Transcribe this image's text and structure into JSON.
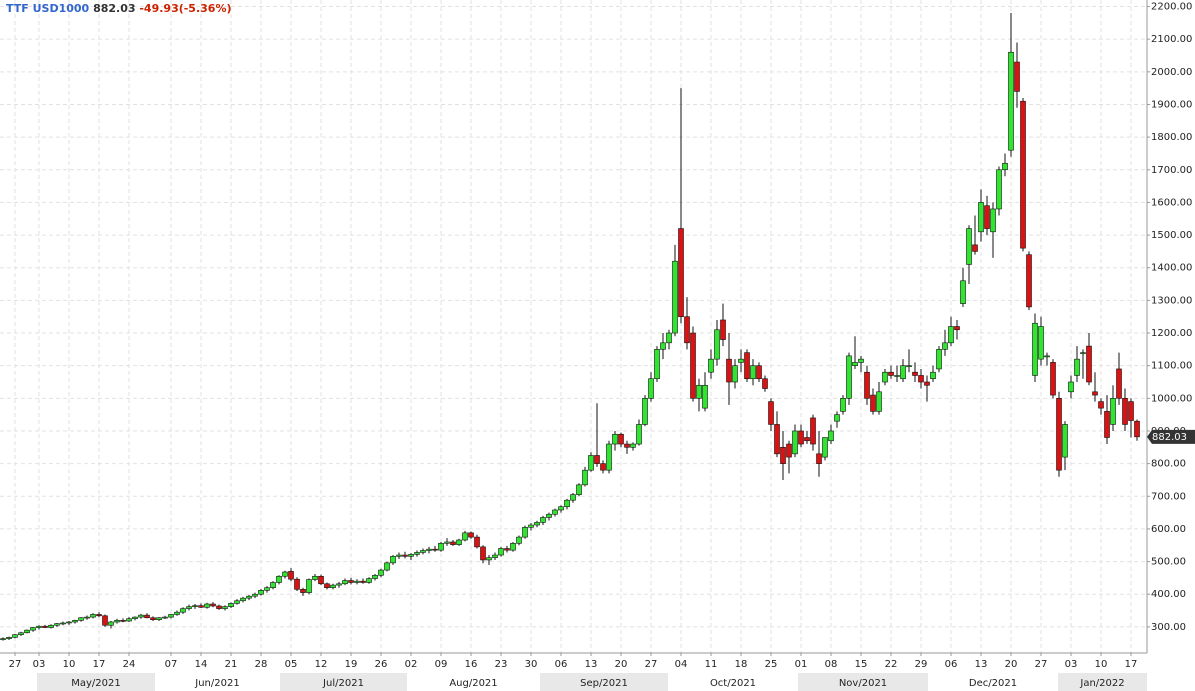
{
  "chart_data": {
    "type": "candlestick",
    "header": {
      "symbol": "TTF USD1000",
      "last": 882.03,
      "change": "-49.93(-5.36%)"
    },
    "months": [
      "May/2021",
      "Jun/2021",
      "Jul/2021",
      "Aug/2021",
      "Sep/2021",
      "Oct/2021",
      "Nov/2021",
      "Dec/2021",
      "Jan/2022"
    ],
    "categories": [
      null,
      null,
      "27",
      null,
      null,
      null,
      "03",
      null,
      null,
      null,
      null,
      "10",
      null,
      null,
      null,
      null,
      "17",
      null,
      null,
      null,
      null,
      "24",
      null,
      null,
      null,
      null,
      null,
      null,
      "07",
      null,
      null,
      null,
      null,
      "14",
      null,
      null,
      null,
      null,
      "21",
      null,
      null,
      null,
      null,
      "28",
      null,
      null,
      null,
      null,
      "05",
      null,
      null,
      null,
      null,
      "12",
      null,
      null,
      null,
      null,
      "19",
      null,
      null,
      null,
      null,
      "26",
      null,
      null,
      null,
      null,
      "02",
      null,
      null,
      null,
      null,
      "09",
      null,
      null,
      null,
      null,
      "16",
      null,
      null,
      null,
      null,
      "23",
      null,
      null,
      null,
      null,
      "30",
      null,
      null,
      null,
      null,
      "06",
      null,
      null,
      null,
      null,
      "13",
      null,
      null,
      null,
      null,
      "20",
      null,
      null,
      null,
      null,
      "27",
      null,
      null,
      null,
      null,
      "04",
      null,
      null,
      null,
      null,
      "11",
      null,
      null,
      null,
      null,
      "18",
      null,
      null,
      null,
      null,
      "25",
      null,
      null,
      null,
      null,
      "01",
      null,
      null,
      null,
      null,
      "08",
      null,
      null,
      null,
      null,
      "15",
      null,
      null,
      null,
      null,
      "22",
      null,
      null,
      null,
      null,
      "29",
      null,
      null,
      null,
      null,
      "06",
      null,
      null,
      null,
      null,
      "13",
      null,
      null,
      null,
      null,
      "20",
      null,
      null,
      null,
      null,
      "27",
      null,
      null,
      null,
      null,
      "03",
      null,
      null,
      null,
      null,
      "10",
      null,
      null,
      null,
      null,
      "17",
      null
    ],
    "ohlc": [
      [
        262,
        268,
        258,
        264
      ],
      [
        264,
        270,
        260,
        268
      ],
      [
        268,
        278,
        265,
        276
      ],
      [
        276,
        285,
        272,
        282
      ],
      [
        282,
        292,
        280,
        290
      ],
      [
        290,
        300,
        285,
        298
      ],
      [
        298,
        305,
        292,
        302
      ],
      [
        302,
        306,
        296,
        298
      ],
      [
        298,
        308,
        295,
        305
      ],
      [
        305,
        312,
        300,
        310
      ],
      [
        310,
        316,
        305,
        312
      ],
      [
        312,
        318,
        306,
        315
      ],
      [
        315,
        322,
        310,
        320
      ],
      [
        320,
        330,
        316,
        328
      ],
      [
        328,
        335,
        322,
        330
      ],
      [
        330,
        342,
        326,
        338
      ],
      [
        338,
        345,
        330,
        334
      ],
      [
        334,
        338,
        300,
        305
      ],
      [
        305,
        318,
        295,
        315
      ],
      [
        315,
        325,
        310,
        320
      ],
      [
        320,
        326,
        314,
        318
      ],
      [
        318,
        330,
        315,
        325
      ],
      [
        325,
        332,
        320,
        330
      ],
      [
        330,
        340,
        325,
        336
      ],
      [
        336,
        342,
        326,
        328
      ],
      [
        328,
        332,
        318,
        322
      ],
      [
        322,
        330,
        318,
        328
      ],
      [
        328,
        334,
        324,
        330
      ],
      [
        330,
        340,
        326,
        338
      ],
      [
        338,
        350,
        334,
        345
      ],
      [
        345,
        360,
        340,
        356
      ],
      [
        356,
        368,
        350,
        362
      ],
      [
        362,
        370,
        355,
        365
      ],
      [
        365,
        372,
        358,
        360
      ],
      [
        360,
        374,
        356,
        370
      ],
      [
        370,
        376,
        360,
        364
      ],
      [
        364,
        368,
        352,
        356
      ],
      [
        356,
        366,
        350,
        362
      ],
      [
        362,
        375,
        358,
        372
      ],
      [
        372,
        385,
        368,
        380
      ],
      [
        380,
        392,
        375,
        388
      ],
      [
        388,
        398,
        382,
        394
      ],
      [
        394,
        405,
        388,
        400
      ],
      [
        400,
        416,
        396,
        412
      ],
      [
        412,
        425,
        405,
        420
      ],
      [
        420,
        440,
        415,
        436
      ],
      [
        436,
        458,
        430,
        455
      ],
      [
        455,
        472,
        448,
        468
      ],
      [
        470,
        480,
        440,
        446
      ],
      [
        446,
        452,
        410,
        415
      ],
      [
        415,
        420,
        395,
        405
      ],
      [
        405,
        448,
        400,
        445
      ],
      [
        445,
        462,
        440,
        455
      ],
      [
        455,
        460,
        428,
        432
      ],
      [
        432,
        436,
        415,
        420
      ],
      [
        420,
        432,
        415,
        428
      ],
      [
        428,
        438,
        420,
        432
      ],
      [
        432,
        448,
        428,
        442
      ],
      [
        442,
        450,
        430,
        436
      ],
      [
        436,
        446,
        430,
        440
      ],
      [
        440,
        448,
        432,
        436
      ],
      [
        436,
        452,
        432,
        448
      ],
      [
        448,
        462,
        442,
        458
      ],
      [
        458,
        478,
        452,
        474
      ],
      [
        474,
        500,
        470,
        496
      ],
      [
        496,
        520,
        490,
        516
      ],
      [
        516,
        528,
        508,
        520
      ],
      [
        520,
        530,
        510,
        516
      ],
      [
        516,
        526,
        505,
        522
      ],
      [
        522,
        534,
        515,
        528
      ],
      [
        528,
        540,
        522,
        534
      ],
      [
        534,
        545,
        525,
        538
      ],
      [
        538,
        548,
        530,
        535
      ],
      [
        535,
        560,
        530,
        556
      ],
      [
        556,
        572,
        548,
        560
      ],
      [
        560,
        566,
        548,
        552
      ],
      [
        552,
        570,
        548,
        566
      ],
      [
        566,
        594,
        562,
        588
      ],
      [
        588,
        592,
        570,
        575
      ],
      [
        575,
        582,
        540,
        545
      ],
      [
        545,
        550,
        495,
        505
      ],
      [
        505,
        520,
        490,
        512
      ],
      [
        512,
        528,
        505,
        520
      ],
      [
        520,
        545,
        515,
        540
      ],
      [
        540,
        548,
        528,
        535
      ],
      [
        535,
        560,
        530,
        556
      ],
      [
        556,
        580,
        550,
        575
      ],
      [
        575,
        610,
        570,
        605
      ],
      [
        605,
        618,
        595,
        612
      ],
      [
        612,
        625,
        605,
        620
      ],
      [
        620,
        640,
        612,
        635
      ],
      [
        635,
        650,
        626,
        645
      ],
      [
        645,
        662,
        638,
        658
      ],
      [
        658,
        672,
        650,
        668
      ],
      [
        668,
        692,
        660,
        688
      ],
      [
        688,
        710,
        680,
        705
      ],
      [
        705,
        740,
        700,
        735
      ],
      [
        735,
        790,
        730,
        780
      ],
      [
        780,
        835,
        775,
        825
      ],
      [
        825,
        985,
        790,
        800
      ],
      [
        800,
        810,
        770,
        780
      ],
      [
        780,
        870,
        770,
        860
      ],
      [
        860,
        900,
        840,
        890
      ],
      [
        890,
        895,
        850,
        860
      ],
      [
        860,
        870,
        830,
        850
      ],
      [
        850,
        865,
        840,
        860
      ],
      [
        860,
        935,
        855,
        920
      ],
      [
        920,
        1010,
        915,
        1000
      ],
      [
        1000,
        1080,
        990,
        1060
      ],
      [
        1060,
        1160,
        1050,
        1150
      ],
      [
        1150,
        1200,
        1120,
        1170
      ],
      [
        1170,
        1210,
        1150,
        1200
      ],
      [
        1200,
        1470,
        1190,
        1420
      ],
      [
        1520,
        1950,
        1230,
        1250
      ],
      [
        1250,
        1310,
        1150,
        1170
      ],
      [
        1200,
        1220,
        990,
        1000
      ],
      [
        1000,
        1060,
        960,
        1040
      ],
      [
        970,
        1080,
        960,
        1040
      ],
      [
        1080,
        1150,
        1060,
        1120
      ],
      [
        1120,
        1240,
        1100,
        1210
      ],
      [
        1240,
        1290,
        1160,
        1180
      ],
      [
        1120,
        1200,
        980,
        1050
      ],
      [
        1050,
        1120,
        1030,
        1100
      ],
      [
        1110,
        1150,
        1080,
        1120
      ],
      [
        1140,
        1150,
        1050,
        1060
      ],
      [
        1060,
        1120,
        1040,
        1100
      ],
      [
        1100,
        1110,
        1050,
        1060
      ],
      [
        1060,
        1070,
        1020,
        1030
      ],
      [
        990,
        1000,
        900,
        920
      ],
      [
        920,
        960,
        820,
        830
      ],
      [
        850,
        900,
        750,
        800
      ],
      [
        860,
        870,
        770,
        820
      ],
      [
        830,
        920,
        820,
        900
      ],
      [
        900,
        920,
        850,
        860
      ],
      [
        880,
        900,
        860,
        870
      ],
      [
        940,
        950,
        840,
        860
      ],
      [
        830,
        900,
        760,
        800
      ],
      [
        820,
        880,
        810,
        880
      ],
      [
        870,
        920,
        860,
        900
      ],
      [
        930,
        960,
        910,
        950
      ],
      [
        960,
        1010,
        950,
        1000
      ],
      [
        1000,
        1140,
        980,
        1130
      ],
      [
        1100,
        1190,
        1090,
        1110
      ],
      [
        1110,
        1130,
        1080,
        1120
      ],
      [
        1080,
        1100,
        980,
        1000
      ],
      [
        1010,
        1030,
        950,
        960
      ],
      [
        960,
        1050,
        950,
        1020
      ],
      [
        1050,
        1090,
        1040,
        1080
      ],
      [
        1080,
        1100,
        1060,
        1070
      ],
      [
        1070,
        1100,
        1050,
        1070
      ],
      [
        1060,
        1120,
        1050,
        1100
      ],
      [
        1100,
        1150,
        1080,
        1100
      ],
      [
        1080,
        1110,
        1050,
        1070
      ],
      [
        1070,
        1090,
        1030,
        1050
      ],
      [
        1050,
        1070,
        990,
        1040
      ],
      [
        1060,
        1100,
        1050,
        1080
      ],
      [
        1090,
        1160,
        1080,
        1150
      ],
      [
        1150,
        1210,
        1130,
        1170
      ],
      [
        1170,
        1250,
        1160,
        1220
      ],
      [
        1220,
        1240,
        1180,
        1210
      ],
      [
        1290,
        1400,
        1280,
        1360
      ],
      [
        1410,
        1530,
        1350,
        1520
      ],
      [
        1470,
        1560,
        1440,
        1450
      ],
      [
        1510,
        1640,
        1480,
        1600
      ],
      [
        1590,
        1620,
        1500,
        1520
      ],
      [
        1510,
        1600,
        1430,
        1580
      ],
      [
        1580,
        1710,
        1560,
        1700
      ],
      [
        1700,
        1750,
        1680,
        1720
      ],
      [
        1760,
        2180,
        1740,
        2060
      ],
      [
        2030,
        2090,
        1890,
        1940
      ],
      [
        1910,
        1920,
        1450,
        1460
      ],
      [
        1440,
        1450,
        1270,
        1280
      ],
      [
        1070,
        1260,
        1050,
        1230
      ],
      [
        1120,
        1250,
        1100,
        1220
      ],
      [
        1130,
        1140,
        1100,
        1130
      ],
      [
        1110,
        1120,
        1000,
        1010
      ],
      [
        1000,
        1020,
        760,
        780
      ],
      [
        820,
        930,
        780,
        920
      ],
      [
        1020,
        1070,
        1000,
        1050
      ],
      [
        1070,
        1160,
        1050,
        1120
      ],
      [
        1140,
        1150,
        1060,
        1140
      ],
      [
        1160,
        1200,
        1040,
        1050
      ],
      [
        1020,
        1080,
        990,
        1010
      ],
      [
        990,
        1000,
        950,
        970
      ],
      [
        960,
        1010,
        860,
        880
      ],
      [
        920,
        1040,
        900,
        1000
      ],
      [
        1090,
        1140,
        980,
        1000
      ],
      [
        1000,
        1030,
        900,
        920
      ],
      [
        990,
        1000,
        880,
        932
      ],
      [
        930,
        935,
        870,
        882.03
      ]
    ],
    "up_color": "#2ee62e",
    "down_color": "#dd1111",
    "ylim": [
      220,
      2220
    ],
    "yticks": [
      {
        "value": 300,
        "label": "300.00"
      },
      {
        "value": 400,
        "label": "400.00"
      },
      {
        "value": 500,
        "label": "500.00"
      },
      {
        "value": 600,
        "label": "600.00"
      },
      {
        "value": 700,
        "label": "700.00"
      },
      {
        "value": 800,
        "label": "800.00"
      },
      {
        "value": 900,
        "label": "900.00"
      },
      {
        "value": 1000,
        "label": "1000.00"
      },
      {
        "value": 1100,
        "label": "1100.00"
      },
      {
        "value": 1200,
        "label": "1200.00"
      },
      {
        "value": 1300,
        "label": "1300.00"
      },
      {
        "value": 1400,
        "label": "1400.00"
      },
      {
        "value": 1500,
        "label": "1500.00"
      },
      {
        "value": 1600,
        "label": "1600.00"
      },
      {
        "value": 1700,
        "label": "1700.00"
      },
      {
        "value": 1800,
        "label": "1800.00"
      },
      {
        "value": 1900,
        "label": "1900.00"
      },
      {
        "value": 2000,
        "label": "2000.00"
      },
      {
        "value": 2100,
        "label": "2100.00"
      },
      {
        "value": 2200,
        "label": "2200.00"
      }
    ],
    "grid": true
  }
}
